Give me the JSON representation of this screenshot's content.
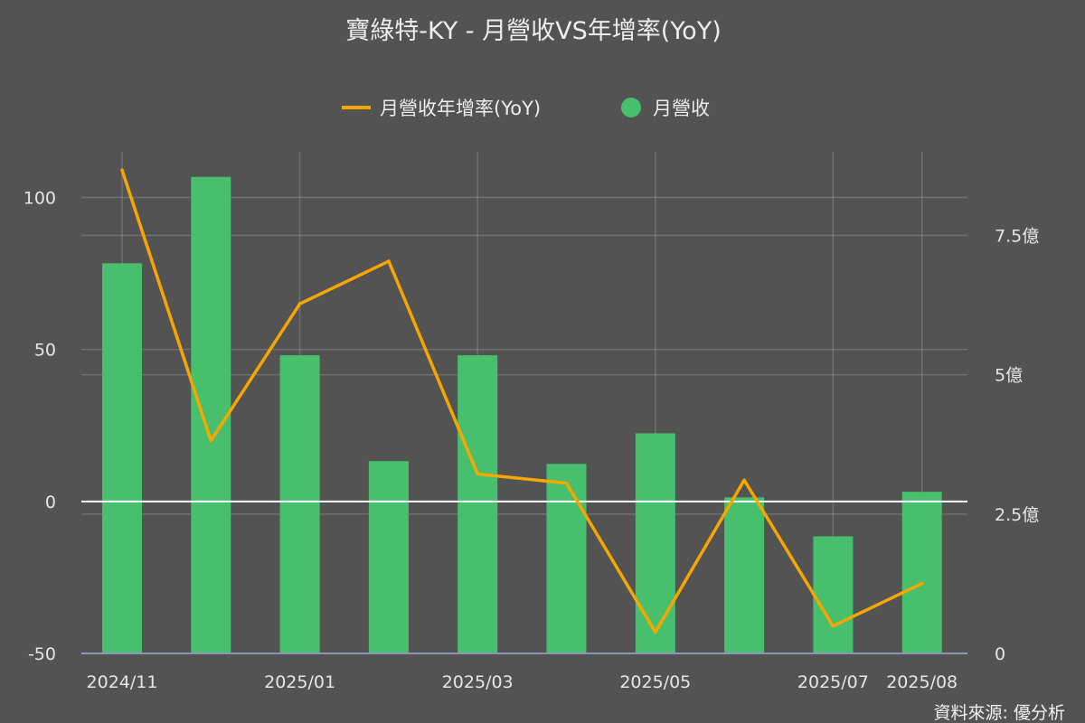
{
  "chart_data": {
    "type": "bar+line",
    "title": "寶綠特-KY - 月營收VS年增率(YoY)",
    "legend": {
      "placement": "top-center",
      "items": [
        {
          "label": "月營收年增率(YoY)",
          "color": "#f5a700",
          "shape": "line"
        },
        {
          "label": "月營收",
          "color": "#48bf6c",
          "shape": "circle"
        }
      ]
    },
    "categories": [
      "2024/11",
      "2024/12",
      "2025/01",
      "2025/02",
      "2025/03",
      "2025/04",
      "2025/05",
      "2025/06",
      "2025/07",
      "2025/08"
    ],
    "x_tick_labels": [
      "2024/11",
      "2025/01",
      "2025/03",
      "2025/05",
      "2025/07",
      "2025/08"
    ],
    "series": [
      {
        "name": "月營收",
        "type": "bar",
        "axis": "right",
        "unit": "億",
        "color": "#48bf6c",
        "values": [
          7.0,
          8.55,
          5.35,
          3.45,
          5.35,
          3.4,
          3.95,
          2.8,
          2.1,
          2.9
        ]
      },
      {
        "name": "月營收年增率(YoY)",
        "type": "line",
        "axis": "left",
        "unit": "%",
        "color": "#f5a700",
        "values": [
          109,
          20,
          65,
          79,
          9,
          6,
          -43,
          7,
          -41,
          -27
        ]
      }
    ],
    "y_left": {
      "ticks": [
        -50,
        0,
        50,
        100
      ],
      "range": [
        -50,
        115
      ],
      "zero_line": true
    },
    "y_right": {
      "ticks": [
        "0",
        "2.5億",
        "5億",
        "7.5億"
      ],
      "tick_values": [
        0,
        2.5,
        5,
        7.5
      ],
      "range": [
        0,
        9.0
      ]
    },
    "grid": true,
    "source": "資料來源: 優分析"
  }
}
